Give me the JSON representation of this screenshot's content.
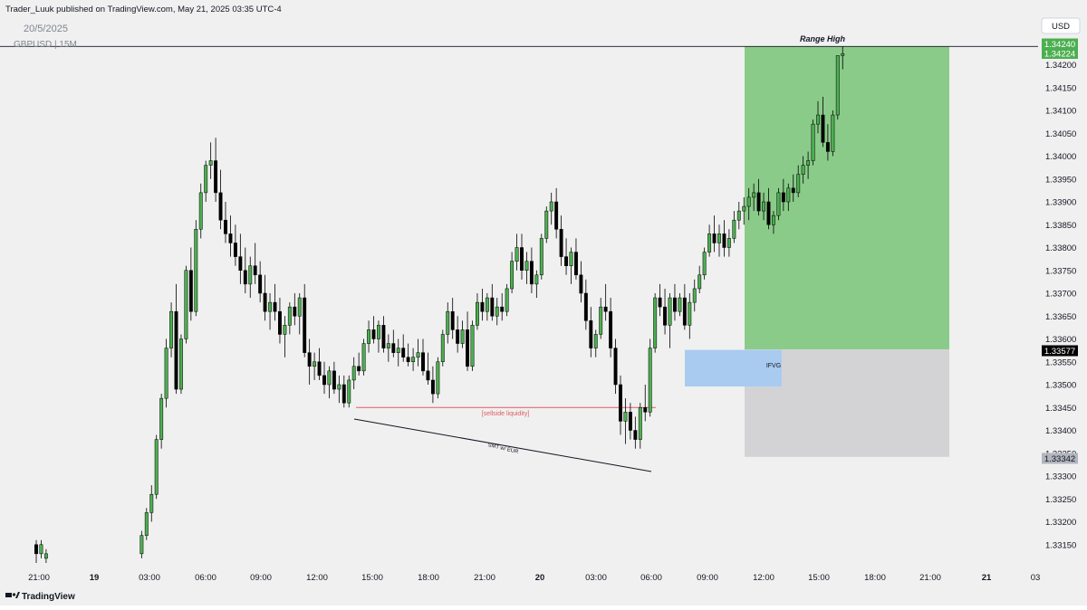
{
  "header": {
    "publisher_line": "Trader_Luuk published on TradingView.com, May 21, 2025 03:35 UTC-4",
    "date_label": "20/5/2025",
    "symbol_label": "GBPUSD | 15M",
    "currency_button": "USD"
  },
  "footer": {
    "brand": "TradingView",
    "logo_icon": "tradingview-logo-icon"
  },
  "colors": {
    "background": "#f0f0f0",
    "bull_body": "#4caf50",
    "bear_body": "#000000",
    "wick": "#000000",
    "target_zone": "#8bcb8a",
    "stop_zone": "#d3d3d6",
    "ifvg_zone": "#a9cbf0",
    "liquidity_line": "#e05c63",
    "price_tag_green": "#4caf50",
    "price_tag_black": "#000000",
    "price_tag_gray": "#b2b5be"
  },
  "chart_data": {
    "type": "candlestick",
    "symbol": "GBPUSD",
    "timeframe": "15M",
    "ylim": [
      1.3308,
      1.3426
    ],
    "y_ticks": [
      "1.34200",
      "1.34150",
      "1.34100",
      "1.34050",
      "1.34000",
      "1.33950",
      "1.33900",
      "1.33850",
      "1.33800",
      "1.33750",
      "1.33700",
      "1.33650",
      "1.33600",
      "1.33550",
      "1.33500",
      "1.33450",
      "1.33400",
      "1.33350",
      "1.33300",
      "1.33250",
      "1.33200",
      "1.33150"
    ],
    "x_ticks": [
      "21:00",
      "19",
      "03:00",
      "06:00",
      "09:00",
      "12:00",
      "15:00",
      "18:00",
      "21:00",
      "20",
      "03:00",
      "06:00",
      "09:00",
      "12:00",
      "15:00",
      "18:00",
      "21:00",
      "21",
      "03"
    ],
    "price_tags": [
      {
        "label": "1.34240",
        "kind": "green"
      },
      {
        "label": "1.34224",
        "kind": "green"
      },
      {
        "label": "1.33577",
        "kind": "black"
      },
      {
        "label": "1.33342",
        "kind": "gray"
      }
    ],
    "annotations": {
      "range_high_label": "Range High",
      "range_high_price": 1.3424,
      "sellside_label": "[sellside liquidity]",
      "sellside_price": 1.3345,
      "smt_label": "SMT w/ EUR",
      "ifvg_label": "IFVG",
      "ifvg_top": 1.3358,
      "ifvg_bottom": 1.335,
      "position_entry": 1.33577,
      "position_target": 1.3424,
      "position_stop": 1.33342
    },
    "candles_ohlc": [
      [
        1.3315,
        1.3316,
        1.3311,
        1.3313
      ],
      [
        1.3313,
        1.3316,
        1.3312,
        1.3315
      ],
      [
        1.3312,
        1.3314,
        1.3311,
        1.3313
      ],
      [
        1.3313,
        1.3318,
        1.3312,
        1.3317
      ],
      [
        1.3317,
        1.3323,
        1.3316,
        1.3322
      ],
      [
        1.3322,
        1.3328,
        1.332,
        1.3326
      ],
      [
        1.3326,
        1.3339,
        1.3325,
        1.3338
      ],
      [
        1.3338,
        1.3348,
        1.3336,
        1.3347
      ],
      [
        1.3347,
        1.336,
        1.3345,
        1.3358
      ],
      [
        1.3358,
        1.3368,
        1.3356,
        1.3366
      ],
      [
        1.3366,
        1.3372,
        1.3348,
        1.3349
      ],
      [
        1.3349,
        1.3361,
        1.3348,
        1.336
      ],
      [
        1.336,
        1.3376,
        1.3359,
        1.3375
      ],
      [
        1.3375,
        1.338,
        1.3364,
        1.3366
      ],
      [
        1.3366,
        1.3386,
        1.3365,
        1.3384
      ],
      [
        1.3384,
        1.3394,
        1.3382,
        1.3392
      ],
      [
        1.3392,
        1.3399,
        1.339,
        1.3398
      ],
      [
        1.3398,
        1.3403,
        1.3395,
        1.3399
      ],
      [
        1.3399,
        1.3404,
        1.339,
        1.3392
      ],
      [
        1.3392,
        1.3397,
        1.3384,
        1.3386
      ],
      [
        1.3386,
        1.339,
        1.3381,
        1.3383
      ],
      [
        1.3383,
        1.3387,
        1.3378,
        1.3381
      ],
      [
        1.3381,
        1.3385,
        1.3376,
        1.3378
      ],
      [
        1.3378,
        1.3383,
        1.3372,
        1.3375
      ],
      [
        1.3375,
        1.338,
        1.337,
        1.3372
      ],
      [
        1.3372,
        1.3378,
        1.3369,
        1.3376
      ],
      [
        1.3376,
        1.3381,
        1.3372,
        1.3374
      ],
      [
        1.3374,
        1.3377,
        1.3368,
        1.337
      ],
      [
        1.337,
        1.3374,
        1.3364,
        1.3366
      ],
      [
        1.3366,
        1.337,
        1.3362,
        1.3368
      ],
      [
        1.3368,
        1.3372,
        1.3364,
        1.3366
      ],
      [
        1.3366,
        1.3369,
        1.3359,
        1.3361
      ],
      [
        1.3361,
        1.3365,
        1.3356,
        1.3363
      ],
      [
        1.3363,
        1.3368,
        1.3361,
        1.3367
      ],
      [
        1.3367,
        1.337,
        1.3363,
        1.3365
      ],
      [
        1.3365,
        1.337,
        1.3361,
        1.3369
      ],
      [
        1.3369,
        1.3372,
        1.3356,
        1.3357
      ],
      [
        1.3357,
        1.336,
        1.335,
        1.3354
      ],
      [
        1.3354,
        1.3357,
        1.3351,
        1.3355
      ],
      [
        1.3355,
        1.3358,
        1.3351,
        1.3352
      ],
      [
        1.3352,
        1.3355,
        1.3348,
        1.335
      ],
      [
        1.335,
        1.3354,
        1.3347,
        1.3353
      ],
      [
        1.3353,
        1.3355,
        1.3348,
        1.3349
      ],
      [
        1.3349,
        1.3352,
        1.3346,
        1.335
      ],
      [
        1.335,
        1.3352,
        1.3345,
        1.3346
      ],
      [
        1.3346,
        1.3352,
        1.3345,
        1.3351
      ],
      [
        1.3351,
        1.3356,
        1.3349,
        1.3354
      ],
      [
        1.3354,
        1.3357,
        1.3352,
        1.3353
      ],
      [
        1.3353,
        1.336,
        1.3352,
        1.3359
      ],
      [
        1.3359,
        1.3364,
        1.3357,
        1.3362
      ],
      [
        1.3362,
        1.3365,
        1.3359,
        1.336
      ],
      [
        1.336,
        1.3364,
        1.3357,
        1.3363
      ],
      [
        1.3363,
        1.3365,
        1.3357,
        1.3358
      ],
      [
        1.3358,
        1.3361,
        1.3355,
        1.3359
      ],
      [
        1.3359,
        1.3362,
        1.3356,
        1.3357
      ],
      [
        1.3357,
        1.336,
        1.3354,
        1.3358
      ],
      [
        1.3358,
        1.3361,
        1.3355,
        1.3356
      ],
      [
        1.3356,
        1.3359,
        1.3354,
        1.3355
      ],
      [
        1.3355,
        1.3358,
        1.3353,
        1.3356
      ],
      [
        1.3356,
        1.336,
        1.3354,
        1.3357
      ],
      [
        1.3357,
        1.336,
        1.3352,
        1.3353
      ],
      [
        1.3353,
        1.3357,
        1.335,
        1.3351
      ],
      [
        1.3351,
        1.3354,
        1.3346,
        1.3348
      ],
      [
        1.3348,
        1.3356,
        1.3347,
        1.3355
      ],
      [
        1.3355,
        1.3362,
        1.3354,
        1.3361
      ],
      [
        1.3361,
        1.3368,
        1.3359,
        1.3366
      ],
      [
        1.3366,
        1.3369,
        1.336,
        1.3362
      ],
      [
        1.3362,
        1.3365,
        1.3357,
        1.3359
      ],
      [
        1.3359,
        1.3364,
        1.3358,
        1.3362
      ],
      [
        1.3362,
        1.3366,
        1.3353,
        1.3354
      ],
      [
        1.3354,
        1.3364,
        1.3353,
        1.3363
      ],
      [
        1.3363,
        1.337,
        1.3362,
        1.3368
      ],
      [
        1.3368,
        1.3371,
        1.3364,
        1.3366
      ],
      [
        1.3366,
        1.337,
        1.3364,
        1.3369
      ],
      [
        1.3369,
        1.3372,
        1.3364,
        1.3365
      ],
      [
        1.3365,
        1.3369,
        1.3363,
        1.3367
      ],
      [
        1.3367,
        1.337,
        1.3364,
        1.3366
      ],
      [
        1.3366,
        1.3372,
        1.3365,
        1.3371
      ],
      [
        1.3371,
        1.3379,
        1.337,
        1.3377
      ],
      [
        1.3377,
        1.3383,
        1.3375,
        1.338
      ],
      [
        1.338,
        1.3383,
        1.3373,
        1.3375
      ],
      [
        1.3375,
        1.3379,
        1.3372,
        1.3377
      ],
      [
        1.3377,
        1.338,
        1.337,
        1.3372
      ],
      [
        1.3372,
        1.3375,
        1.3369,
        1.3374
      ],
      [
        1.3374,
        1.3383,
        1.3373,
        1.3382
      ],
      [
        1.3382,
        1.3389,
        1.3381,
        1.3388
      ],
      [
        1.3388,
        1.3392,
        1.3385,
        1.339
      ],
      [
        1.339,
        1.3393,
        1.3382,
        1.3384
      ],
      [
        1.3384,
        1.3387,
        1.3376,
        1.3378
      ],
      [
        1.3378,
        1.3382,
        1.3374,
        1.3376
      ],
      [
        1.3376,
        1.338,
        1.3372,
        1.3379
      ],
      [
        1.3379,
        1.3382,
        1.3373,
        1.3374
      ],
      [
        1.3374,
        1.3377,
        1.3368,
        1.337
      ],
      [
        1.337,
        1.3373,
        1.3362,
        1.3364
      ],
      [
        1.3364,
        1.3367,
        1.3356,
        1.3358
      ],
      [
        1.3358,
        1.3362,
        1.3356,
        1.3361
      ],
      [
        1.3361,
        1.3369,
        1.336,
        1.3367
      ],
      [
        1.3367,
        1.3372,
        1.3364,
        1.3366
      ],
      [
        1.3366,
        1.3369,
        1.3356,
        1.3358
      ],
      [
        1.3358,
        1.336,
        1.3348,
        1.335
      ],
      [
        1.335,
        1.3352,
        1.3339,
        1.3342
      ],
      [
        1.3342,
        1.3347,
        1.3337,
        1.3344
      ],
      [
        1.3344,
        1.3346,
        1.3338,
        1.334
      ],
      [
        1.334,
        1.3343,
        1.3336,
        1.3338
      ],
      [
        1.3338,
        1.3346,
        1.3336,
        1.3345
      ],
      [
        1.3345,
        1.335,
        1.3342,
        1.3344
      ],
      [
        1.3344,
        1.336,
        1.3343,
        1.3358
      ],
      [
        1.3358,
        1.337,
        1.3357,
        1.3369
      ],
      [
        1.3369,
        1.3372,
        1.3365,
        1.3367
      ],
      [
        1.3367,
        1.3371,
        1.3361,
        1.3363
      ],
      [
        1.3363,
        1.337,
        1.3358,
        1.3369
      ],
      [
        1.3369,
        1.3372,
        1.3364,
        1.3366
      ],
      [
        1.3366,
        1.337,
        1.3365,
        1.3369
      ],
      [
        1.3369,
        1.3372,
        1.3362,
        1.3363
      ],
      [
        1.3363,
        1.337,
        1.336,
        1.3368
      ],
      [
        1.3368,
        1.3373,
        1.3366,
        1.3371
      ],
      [
        1.3371,
        1.3376,
        1.337,
        1.3374
      ],
      [
        1.3374,
        1.338,
        1.3373,
        1.3379
      ],
      [
        1.3379,
        1.3385,
        1.3378,
        1.3383
      ],
      [
        1.3383,
        1.3387,
        1.3379,
        1.3381
      ],
      [
        1.3381,
        1.3385,
        1.3378,
        1.3383
      ],
      [
        1.3383,
        1.3386,
        1.3378,
        1.338
      ],
      [
        1.338,
        1.3384,
        1.3378,
        1.3382
      ],
      [
        1.3382,
        1.3388,
        1.3381,
        1.3386
      ],
      [
        1.3386,
        1.339,
        1.3384,
        1.3388
      ],
      [
        1.3388,
        1.3391,
        1.3385,
        1.3389
      ],
      [
        1.3389,
        1.3393,
        1.3386,
        1.3391
      ],
      [
        1.3391,
        1.3394,
        1.3388,
        1.3392
      ],
      [
        1.3392,
        1.3395,
        1.3387,
        1.3388
      ],
      [
        1.3388,
        1.3392,
        1.3386,
        1.339
      ],
      [
        1.339,
        1.3393,
        1.3384,
        1.3385
      ],
      [
        1.3385,
        1.3388,
        1.3383,
        1.3387
      ],
      [
        1.3387,
        1.3393,
        1.3386,
        1.3392
      ],
      [
        1.3392,
        1.3395,
        1.3388,
        1.339
      ],
      [
        1.339,
        1.3394,
        1.3388,
        1.3393
      ],
      [
        1.3393,
        1.3396,
        1.339,
        1.3392
      ],
      [
        1.3392,
        1.3398,
        1.3391,
        1.3396
      ],
      [
        1.3396,
        1.34,
        1.3394,
        1.3398
      ],
      [
        1.3398,
        1.3401,
        1.3395,
        1.3399
      ],
      [
        1.3399,
        1.3408,
        1.3398,
        1.3407
      ],
      [
        1.3407,
        1.3412,
        1.3405,
        1.3409
      ],
      [
        1.3409,
        1.3413,
        1.3402,
        1.3403
      ],
      [
        1.3403,
        1.3407,
        1.3399,
        1.3401
      ],
      [
        1.3401,
        1.341,
        1.34,
        1.3409
      ],
      [
        1.3409,
        1.3415,
        1.3408,
        1.3422
      ],
      [
        1.3422,
        1.3424,
        1.3419,
        1.34224
      ]
    ]
  }
}
